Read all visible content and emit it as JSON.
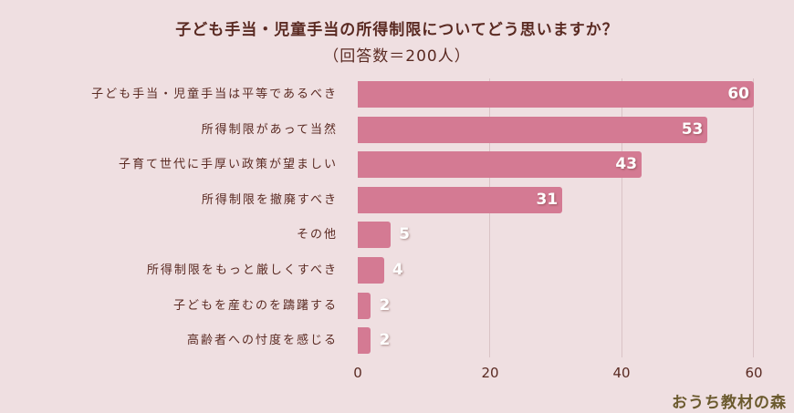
{
  "chart_data": {
    "type": "bar",
    "orientation": "horizontal",
    "title": "子ども手当・児童手当の所得制限についてどう思いますか？",
    "subtitle": "（回答数＝200人）",
    "categories": [
      "子ども手当・児童手当は平等であるべき",
      "所得制限があって当然",
      "子育て世代に手厚い政策が望ましい",
      "所得制限を撤廃すべき",
      "その他",
      "所得制限をもっと厳しくすべき",
      "子どもを産むのを躊躇する",
      "高齢者への忖度を感じる"
    ],
    "values": [
      60,
      53,
      43,
      31,
      5,
      4,
      2,
      2
    ],
    "xlabel": "",
    "ylabel": "",
    "xlim": [
      0,
      60
    ],
    "xticks": [
      "0",
      "20",
      "40",
      "60"
    ],
    "grid": true,
    "bar_color": "#d47a93",
    "legend": null
  },
  "header": {
    "title": "子ども手当・児童手当の所得制限についてどう思いますか？",
    "subtitle": "（回答数＝200人）"
  },
  "footer": {
    "brand": "おうち教材の森"
  },
  "colors": {
    "background": "#efdfe1",
    "bar": "#d47a93",
    "text": "#5a2a22",
    "brand": "#6b5a2e"
  }
}
